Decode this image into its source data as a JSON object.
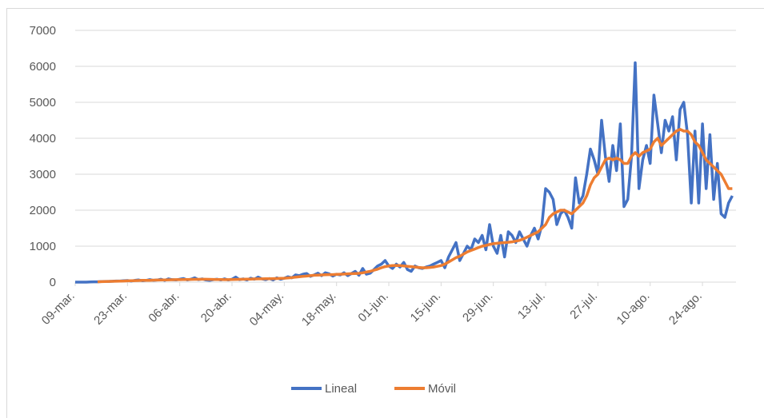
{
  "chart_data": {
    "type": "line",
    "categories": [
      "09-mar.",
      null,
      null,
      null,
      null,
      null,
      null,
      null,
      null,
      null,
      null,
      null,
      null,
      null,
      "23-mar.",
      null,
      null,
      null,
      null,
      null,
      null,
      null,
      null,
      null,
      null,
      null,
      null,
      null,
      "06-abr.",
      null,
      null,
      null,
      null,
      null,
      null,
      null,
      null,
      null,
      null,
      null,
      null,
      null,
      "20-abr.",
      null,
      null,
      null,
      null,
      null,
      null,
      null,
      null,
      null,
      null,
      null,
      null,
      null,
      "04-may.",
      null,
      null,
      null,
      null,
      null,
      null,
      null,
      null,
      null,
      null,
      null,
      null,
      null,
      "18-may.",
      null,
      null,
      null,
      null,
      null,
      null,
      null,
      null,
      null,
      null,
      null,
      null,
      null,
      "01-jun.",
      null,
      null,
      null,
      null,
      null,
      null,
      null,
      null,
      null,
      null,
      null,
      null,
      null,
      "15-jun.",
      null,
      null,
      null,
      null,
      null,
      null,
      null,
      null,
      null,
      null,
      null,
      null,
      null,
      "29-jun.",
      null,
      null,
      null,
      null,
      null,
      null,
      null,
      null,
      null,
      null,
      null,
      null,
      null,
      "13-jul.",
      null,
      null,
      null,
      null,
      null,
      null,
      null,
      null,
      null,
      null,
      null,
      null,
      null,
      "27-jul.",
      null,
      null,
      null,
      null,
      null,
      null,
      null,
      null,
      null,
      null,
      null,
      null,
      null,
      "10-ago.",
      null,
      null,
      null,
      null,
      null,
      null,
      null,
      null,
      null,
      null,
      null,
      null,
      null,
      "24-ago.",
      null,
      null,
      null,
      null,
      null,
      null,
      null,
      null
    ],
    "series": [
      {
        "name": "Lineal",
        "color": "#4472c4",
        "values": [
          0,
          0,
          0,
          0,
          5,
          10,
          10,
          15,
          20,
          20,
          25,
          30,
          30,
          40,
          45,
          30,
          50,
          60,
          40,
          50,
          70,
          50,
          60,
          80,
          50,
          90,
          70,
          60,
          80,
          100,
          60,
          80,
          120,
          70,
          90,
          60,
          50,
          70,
          80,
          60,
          90,
          60,
          80,
          140,
          70,
          90,
          60,
          110,
          80,
          140,
          90,
          70,
          100,
          60,
          120,
          80,
          110,
          150,
          120,
          200,
          180,
          220,
          240,
          160,
          200,
          250,
          180,
          260,
          230,
          170,
          220,
          200,
          260,
          180,
          240,
          300,
          190,
          380,
          220,
          250,
          350,
          450,
          500,
          600,
          450,
          380,
          500,
          420,
          550,
          350,
          300,
          450,
          400,
          380,
          420,
          450,
          500,
          550,
          600,
          400,
          700,
          900,
          1100,
          600,
          800,
          1000,
          900,
          1200,
          1100,
          1300,
          900,
          1600,
          1000,
          800,
          1300,
          700,
          1400,
          1300,
          1100,
          1400,
          1200,
          1000,
          1300,
          1500,
          1200,
          1600,
          2600,
          2500,
          2300,
          1600,
          1900,
          2000,
          1800,
          1500,
          2900,
          2200,
          2400,
          3000,
          3700,
          3400,
          3000,
          4500,
          3500,
          2800,
          3800,
          3100,
          4400,
          2100,
          2300,
          3500,
          6100,
          2600,
          3400,
          3800,
          3300,
          5200,
          4400,
          3600,
          4500,
          4200,
          4600,
          3400,
          4800,
          5000,
          4100,
          2200,
          4200,
          2200,
          4400,
          2600,
          4100,
          2300,
          3300,
          1900,
          1800,
          2200,
          2400
        ]
      },
      {
        "name": "Móvil",
        "color": "#ed7d31",
        "values": [
          null,
          null,
          null,
          null,
          null,
          null,
          10,
          13,
          17,
          20,
          22,
          25,
          28,
          31,
          35,
          38,
          42,
          45,
          48,
          50,
          52,
          55,
          57,
          60,
          62,
          65,
          66,
          68,
          70,
          72,
          74,
          76,
          78,
          78,
          80,
          80,
          78,
          76,
          74,
          72,
          70,
          70,
          72,
          75,
          78,
          80,
          82,
          85,
          88,
          90,
          92,
          94,
          96,
          98,
          100,
          105,
          110,
          115,
          125,
          140,
          150,
          160,
          170,
          180,
          190,
          195,
          200,
          205,
          210,
          210,
          215,
          220,
          225,
          230,
          235,
          240,
          245,
          260,
          280,
          300,
          330,
          360,
          400,
          430,
          450,
          460,
          465,
          460,
          450,
          440,
          430,
          420,
          410,
          400,
          400,
          410,
          420,
          440,
          460,
          500,
          560,
          620,
          680,
          720,
          780,
          840,
          880,
          920,
          960,
          1000,
          1020,
          1050,
          1070,
          1080,
          1090,
          1100,
          1110,
          1120,
          1140,
          1160,
          1200,
          1250,
          1300,
          1350,
          1400,
          1500,
          1600,
          1800,
          1900,
          1950,
          2000,
          2000,
          1950,
          1900,
          2000,
          2100,
          2200,
          2400,
          2700,
          2900,
          3000,
          3200,
          3400,
          3450,
          3400,
          3450,
          3400,
          3300,
          3300,
          3500,
          3600,
          3500,
          3600,
          3650,
          3700,
          3900,
          4000,
          3800,
          3900,
          4000,
          4100,
          4200,
          4250,
          4200,
          4200,
          4100,
          3900,
          3800,
          3600,
          3400,
          3300,
          3200,
          3100,
          3000,
          2800,
          2600,
          2600
        ]
      }
    ],
    "ylim": [
      0,
      7000
    ],
    "yticks": [
      0,
      1000,
      2000,
      3000,
      4000,
      5000,
      6000,
      7000
    ],
    "grid": true,
    "legend": "bottom"
  }
}
